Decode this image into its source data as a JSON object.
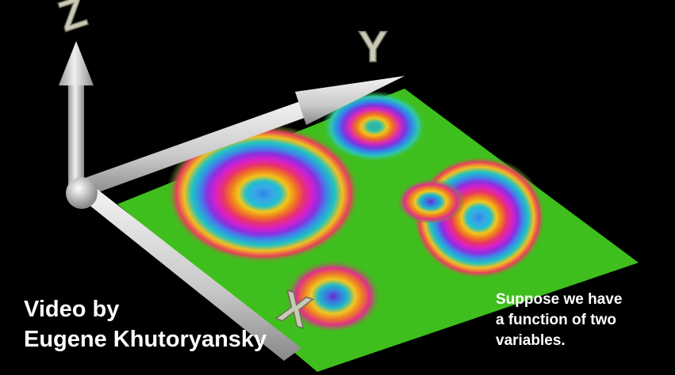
{
  "scene": {
    "axis_labels": {
      "x": "X",
      "y": "Y",
      "z": "Z"
    },
    "colors": {
      "background": "#000000",
      "plane": "#3fbf1e",
      "axis": "#d8d8d8",
      "axis_label": "#c9c9b4"
    }
  },
  "credit": {
    "line1": "Video by",
    "line2": "Eugene Khutoryansky"
  },
  "caption": {
    "line1": "Suppose we have",
    "line2": "a function of two",
    "line3": "variables."
  }
}
